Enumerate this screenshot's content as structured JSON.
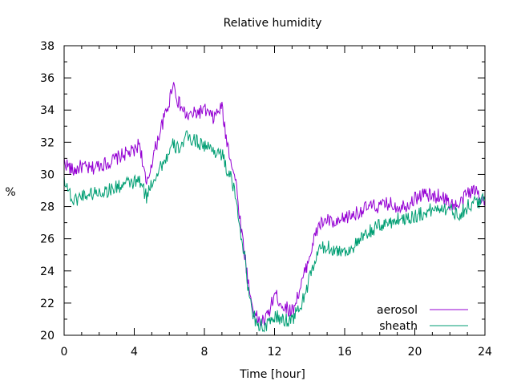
{
  "chart_data": {
    "type": "line",
    "title": "Relative humidity",
    "xlabel": "Time [hour]",
    "ylabel": "%",
    "xlim": [
      0,
      24
    ],
    "ylim": [
      20,
      38
    ],
    "xticks": [
      0,
      4,
      8,
      12,
      16,
      20,
      24
    ],
    "yticks": [
      20,
      22,
      24,
      26,
      28,
      30,
      32,
      34,
      36,
      38
    ],
    "grid": false,
    "legend": "bottom-right",
    "series": [
      {
        "name": "aerosol",
        "color": "#9400d3",
        "x": [
          0,
          0.5,
          1,
          1.5,
          2,
          2.5,
          3,
          3.5,
          4,
          4.3,
          4.7,
          5,
          5.5,
          6,
          6.2,
          6.5,
          7,
          7.5,
          8,
          8.5,
          9,
          9.2,
          9.5,
          9.8,
          10,
          10.3,
          10.6,
          10.9,
          11.2,
          11.5,
          11.8,
          12,
          12.5,
          13,
          13.5,
          14,
          14.5,
          15,
          15.5,
          16,
          16.5,
          17,
          17.5,
          18,
          18.5,
          19,
          19.5,
          20,
          20.5,
          21,
          21.5,
          22,
          22.5,
          23,
          23.5,
          24
        ],
        "y": [
          30.8,
          30.2,
          30.5,
          30.3,
          30.6,
          30.7,
          31.0,
          31.3,
          31.4,
          32.0,
          29.2,
          30.8,
          32.8,
          34.5,
          35.8,
          34.5,
          33.6,
          33.8,
          34.0,
          33.5,
          34.2,
          32.5,
          31.0,
          29.5,
          27.5,
          25.0,
          22.5,
          21.2,
          20.8,
          21.0,
          21.8,
          22.6,
          21.8,
          21.5,
          23.0,
          25.0,
          26.8,
          27.2,
          26.8,
          27.3,
          27.5,
          27.8,
          28.0,
          28.0,
          28.2,
          28.0,
          28.1,
          28.5,
          28.8,
          28.6,
          28.7,
          28.2,
          28.0,
          28.9,
          29.0,
          28.4
        ]
      },
      {
        "name": "sheath",
        "color": "#009e73",
        "x": [
          0,
          0.5,
          1,
          1.5,
          2,
          2.5,
          3,
          3.5,
          4,
          4.3,
          4.7,
          5,
          5.5,
          6,
          6.2,
          6.5,
          7,
          7.5,
          8,
          8.5,
          9,
          9.2,
          9.5,
          9.8,
          10,
          10.3,
          10.6,
          10.9,
          11.2,
          11.5,
          11.8,
          12,
          12.5,
          13,
          13.5,
          14,
          14.5,
          15,
          15.5,
          16,
          16.5,
          17,
          17.5,
          18,
          18.5,
          19,
          19.5,
          20,
          20.5,
          21,
          21.5,
          22,
          22.5,
          23,
          23.5,
          24
        ],
        "y": [
          29.8,
          28.3,
          28.7,
          28.8,
          28.9,
          29.0,
          29.2,
          29.4,
          29.5,
          29.6,
          28.6,
          29.5,
          30.5,
          31.3,
          31.8,
          31.6,
          32.3,
          32.1,
          31.8,
          31.5,
          31.3,
          30.5,
          29.8,
          28.5,
          27.0,
          24.8,
          22.0,
          21.0,
          20.6,
          20.5,
          20.8,
          21.2,
          20.9,
          21.0,
          21.8,
          23.5,
          25.3,
          25.5,
          25.3,
          25.2,
          25.5,
          26.0,
          26.5,
          26.8,
          27.0,
          27.2,
          27.3,
          27.4,
          27.6,
          27.8,
          28.0,
          27.8,
          27.5,
          28.0,
          28.3,
          28.4
        ]
      }
    ]
  }
}
